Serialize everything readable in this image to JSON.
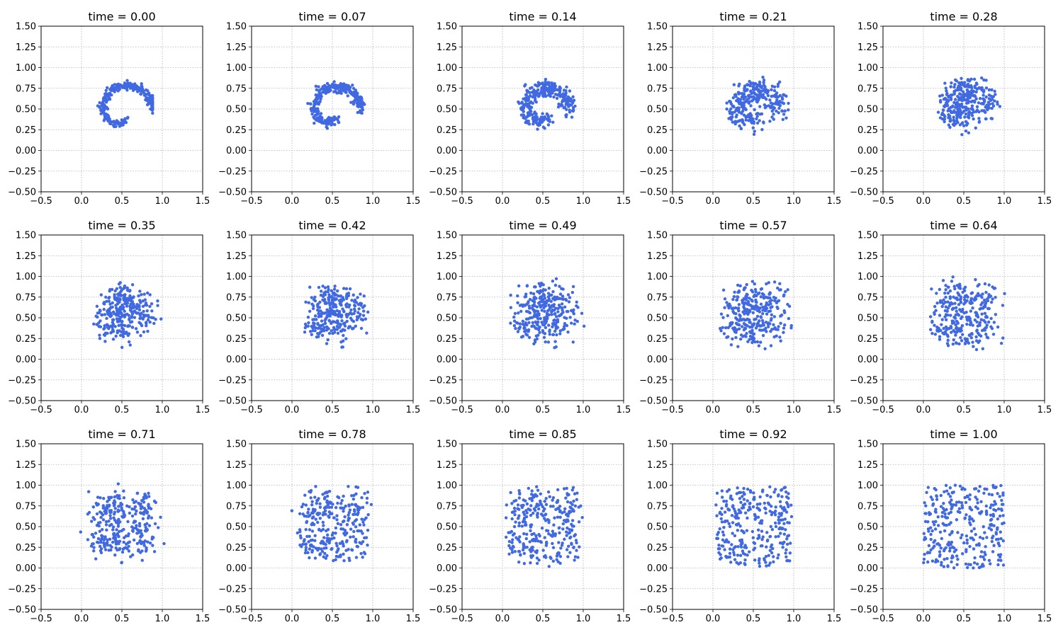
{
  "figure": {
    "marker_color": "#4169E1",
    "grid_color": "#b0b0b0",
    "grid": true,
    "rows": 3,
    "cols": 5
  },
  "chart_data": [
    {
      "type": "scatter",
      "title": "time = 0.00",
      "shape": "spiral",
      "t": 0.0,
      "n_points": 300,
      "xlim": [
        -0.5,
        1.5
      ],
      "ylim": [
        -0.5,
        1.5
      ],
      "xticks": [
        "−0.5",
        "0.0",
        "0.5",
        "1.0",
        "1.5"
      ],
      "yticks": [
        "−0.50",
        "−0.25",
        "0.00",
        "0.25",
        "0.50",
        "0.75",
        "1.00",
        "1.25",
        "1.50"
      ]
    },
    {
      "type": "scatter",
      "title": "time = 0.07",
      "shape": "spiral",
      "t": 0.07,
      "n_points": 300,
      "xlim": [
        -0.5,
        1.5
      ],
      "ylim": [
        -0.5,
        1.5
      ],
      "xticks": [
        "−0.5",
        "0.0",
        "0.5",
        "1.0",
        "1.5"
      ],
      "yticks": [
        "−0.50",
        "−0.25",
        "0.00",
        "0.25",
        "0.50",
        "0.75",
        "1.00",
        "1.25",
        "1.50"
      ]
    },
    {
      "type": "scatter",
      "title": "time = 0.14",
      "shape": "spiral",
      "t": 0.14,
      "n_points": 300,
      "xlim": [
        -0.5,
        1.5
      ],
      "ylim": [
        -0.5,
        1.5
      ],
      "xticks": [
        "−0.5",
        "0.0",
        "0.5",
        "1.0",
        "1.5"
      ],
      "yticks": [
        "−0.50",
        "−0.25",
        "0.00",
        "0.25",
        "0.50",
        "0.75",
        "1.00",
        "1.25",
        "1.50"
      ]
    },
    {
      "type": "scatter",
      "title": "time = 0.21",
      "shape": "spiral",
      "t": 0.21,
      "n_points": 300,
      "xlim": [
        -0.5,
        1.5
      ],
      "ylim": [
        -0.5,
        1.5
      ],
      "xticks": [
        "−0.5",
        "0.0",
        "0.5",
        "1.0",
        "1.5"
      ],
      "yticks": [
        "−0.50",
        "−0.25",
        "0.00",
        "0.25",
        "0.50",
        "0.75",
        "1.00",
        "1.25",
        "1.50"
      ]
    },
    {
      "type": "scatter",
      "title": "time = 0.28",
      "shape": "spiral",
      "t": 0.28,
      "n_points": 300,
      "xlim": [
        -0.5,
        1.5
      ],
      "ylim": [
        -0.5,
        1.5
      ],
      "xticks": [
        "−0.5",
        "0.0",
        "0.5",
        "1.0",
        "1.5"
      ],
      "yticks": [
        "−0.50",
        "−0.25",
        "0.00",
        "0.25",
        "0.50",
        "0.75",
        "1.00",
        "1.25",
        "1.50"
      ]
    },
    {
      "type": "scatter",
      "title": "time = 0.35",
      "shape": "spiral",
      "t": 0.35,
      "n_points": 300,
      "xlim": [
        -0.5,
        1.5
      ],
      "ylim": [
        -0.5,
        1.5
      ],
      "xticks": [
        "−0.5",
        "0.0",
        "0.5",
        "1.0",
        "1.5"
      ],
      "yticks": [
        "−0.50",
        "−0.25",
        "0.00",
        "0.25",
        "0.50",
        "0.75",
        "1.00",
        "1.25",
        "1.50"
      ]
    },
    {
      "type": "scatter",
      "title": "time = 0.42",
      "shape": "spiral",
      "t": 0.42,
      "n_points": 300,
      "xlim": [
        -0.5,
        1.5
      ],
      "ylim": [
        -0.5,
        1.5
      ],
      "xticks": [
        "−0.5",
        "0.0",
        "0.5",
        "1.0",
        "1.5"
      ],
      "yticks": [
        "−0.50",
        "−0.25",
        "0.00",
        "0.25",
        "0.50",
        "0.75",
        "1.00",
        "1.25",
        "1.50"
      ]
    },
    {
      "type": "scatter",
      "title": "time = 0.49",
      "shape": "spiral",
      "t": 0.49,
      "n_points": 300,
      "xlim": [
        -0.5,
        1.5
      ],
      "ylim": [
        -0.5,
        1.5
      ],
      "xticks": [
        "−0.5",
        "0.0",
        "0.5",
        "1.0",
        "1.5"
      ],
      "yticks": [
        "−0.50",
        "−0.25",
        "0.00",
        "0.25",
        "0.50",
        "0.75",
        "1.00",
        "1.25",
        "1.50"
      ]
    },
    {
      "type": "scatter",
      "title": "time = 0.57",
      "shape": "spiral",
      "t": 0.57,
      "n_points": 300,
      "xlim": [
        -0.5,
        1.5
      ],
      "ylim": [
        -0.5,
        1.5
      ],
      "xticks": [
        "−0.5",
        "0.0",
        "0.5",
        "1.0",
        "1.5"
      ],
      "yticks": [
        "−0.50",
        "−0.25",
        "0.00",
        "0.25",
        "0.50",
        "0.75",
        "1.00",
        "1.25",
        "1.50"
      ]
    },
    {
      "type": "scatter",
      "title": "time = 0.64",
      "shape": "spiral",
      "t": 0.64,
      "n_points": 300,
      "xlim": [
        -0.5,
        1.5
      ],
      "ylim": [
        -0.5,
        1.5
      ],
      "xticks": [
        "−0.5",
        "0.0",
        "0.5",
        "1.0",
        "1.5"
      ],
      "yticks": [
        "−0.50",
        "−0.25",
        "0.00",
        "0.25",
        "0.50",
        "0.75",
        "1.00",
        "1.25",
        "1.50"
      ]
    },
    {
      "type": "scatter",
      "title": "time = 0.71",
      "shape": "spiral",
      "t": 0.71,
      "n_points": 300,
      "xlim": [
        -0.5,
        1.5
      ],
      "ylim": [
        -0.5,
        1.5
      ],
      "xticks": [
        "−0.5",
        "0.0",
        "0.5",
        "1.0",
        "1.5"
      ],
      "yticks": [
        "−0.50",
        "−0.25",
        "0.00",
        "0.25",
        "0.50",
        "0.75",
        "1.00",
        "1.25",
        "1.50"
      ]
    },
    {
      "type": "scatter",
      "title": "time = 0.78",
      "shape": "spiral",
      "t": 0.78,
      "n_points": 300,
      "xlim": [
        -0.5,
        1.5
      ],
      "ylim": [
        -0.5,
        1.5
      ],
      "xticks": [
        "−0.5",
        "0.0",
        "0.5",
        "1.0",
        "1.5"
      ],
      "yticks": [
        "−0.50",
        "−0.25",
        "0.00",
        "0.25",
        "0.50",
        "0.75",
        "1.00",
        "1.25",
        "1.50"
      ]
    },
    {
      "type": "scatter",
      "title": "time = 0.85",
      "shape": "spiral",
      "t": 0.85,
      "n_points": 300,
      "xlim": [
        -0.5,
        1.5
      ],
      "ylim": [
        -0.5,
        1.5
      ],
      "xticks": [
        "−0.5",
        "0.0",
        "0.5",
        "1.0",
        "1.5"
      ],
      "yticks": [
        "−0.50",
        "−0.25",
        "0.00",
        "0.25",
        "0.50",
        "0.75",
        "1.00",
        "1.25",
        "1.50"
      ]
    },
    {
      "type": "scatter",
      "title": "time = 0.92",
      "shape": "spiral",
      "t": 0.92,
      "n_points": 300,
      "xlim": [
        -0.5,
        1.5
      ],
      "ylim": [
        -0.5,
        1.5
      ],
      "xticks": [
        "−0.5",
        "0.0",
        "0.5",
        "1.0",
        "1.5"
      ],
      "yticks": [
        "−0.50",
        "−0.25",
        "0.00",
        "0.25",
        "0.50",
        "0.75",
        "1.00",
        "1.25",
        "1.50"
      ]
    },
    {
      "type": "scatter",
      "title": "time = 1.00",
      "shape": "uniform-square",
      "t": 1.0,
      "n_points": 300,
      "xlim": [
        -0.5,
        1.5
      ],
      "ylim": [
        -0.5,
        1.5
      ],
      "xticks": [
        "−0.5",
        "0.0",
        "0.5",
        "1.0",
        "1.5"
      ],
      "yticks": [
        "−0.50",
        "−0.25",
        "0.00",
        "0.25",
        "0.50",
        "0.75",
        "1.00",
        "1.25",
        "1.50"
      ]
    }
  ]
}
